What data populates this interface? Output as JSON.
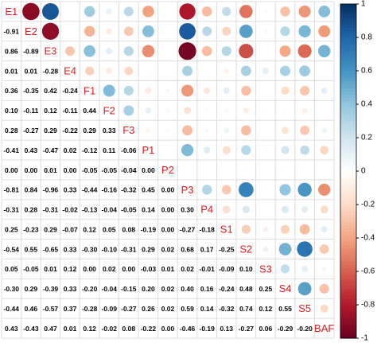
{
  "chart_data": {
    "type": "corrplot",
    "variables": [
      "E1",
      "E2",
      "E3",
      "E4",
      "F1",
      "F2",
      "F3",
      "P1",
      "P2",
      "P3",
      "P4",
      "S1",
      "S2",
      "S3",
      "S4",
      "S5",
      "BAF"
    ],
    "values": [
      [],
      [
        -0.91
      ],
      [
        0.86,
        -0.89
      ],
      [
        0.01,
        0.01,
        -0.28
      ],
      [
        0.36,
        -0.35,
        0.42,
        -0.24
      ],
      [
        0.1,
        -0.11,
        0.12,
        -0.11,
        0.44
      ],
      [
        0.28,
        -0.27,
        0.29,
        -0.22,
        0.29,
        0.33
      ],
      [
        -0.41,
        0.43,
        -0.47,
        0.02,
        -0.12,
        0.11,
        -0.06
      ],
      [
        0.0,
        0.0,
        0.01,
        0.0,
        -0.05,
        -0.05,
        -0.04,
        0.0
      ],
      [
        -0.81,
        0.84,
        -0.96,
        0.33,
        -0.44,
        -0.16,
        -0.32,
        0.45,
        0.0
      ],
      [
        -0.31,
        0.28,
        -0.31,
        -0.02,
        -0.13,
        -0.04,
        -0.05,
        0.14,
        0.0,
        0.3
      ],
      [
        0.25,
        -0.23,
        0.29,
        -0.07,
        0.12,
        0.05,
        0.08,
        -0.19,
        0.0,
        -0.27,
        -0.18
      ],
      [
        -0.54,
        0.55,
        -0.65,
        0.33,
        -0.3,
        -0.1,
        -0.31,
        0.29,
        0.02,
        0.68,
        0.17,
        -0.25
      ],
      [
        0.05,
        -0.05,
        0.01,
        0.12,
        0.0,
        0.02,
        0.0,
        -0.03,
        0.01,
        0.02,
        -0.01,
        -0.09,
        0.1
      ],
      [
        -0.3,
        0.29,
        -0.39,
        0.33,
        -0.2,
        -0.04,
        -0.15,
        0.2,
        0.02,
        0.4,
        0.16,
        -0.24,
        0.48,
        0.25
      ],
      [
        -0.44,
        0.46,
        -0.57,
        0.37,
        -0.28,
        -0.09,
        -0.27,
        0.26,
        0.02,
        0.59,
        0.14,
        -0.32,
        0.74,
        0.12,
        0.55
      ],
      [
        0.43,
        -0.43,
        0.47,
        0.01,
        0.12,
        -0.02,
        0.08,
        -0.22,
        0.0,
        -0.46,
        -0.19,
        0.13,
        -0.27,
        0.06,
        -0.29,
        -0.2
      ]
    ],
    "value_labels": [
      [],
      [
        "-0.91"
      ],
      [
        "0.86",
        "-0.89"
      ],
      [
        "0.01",
        "0.01",
        "-0.28"
      ],
      [
        "0.36",
        "-0.35",
        "0.42",
        "-0.24"
      ],
      [
        "0.10",
        "-0.11",
        "0.12",
        "-0.11",
        "0.44"
      ],
      [
        "0.28",
        "-0.27",
        "0.29",
        "-0.22",
        "0.29",
        "0.33"
      ],
      [
        "-0.41",
        "0.43",
        "-0.47",
        "0.02",
        "-0.12",
        "0.11",
        "-0.06"
      ],
      [
        "0.00",
        "0.00",
        "0.01",
        "0.00",
        "-0.05",
        "-0.05",
        "-0.04",
        "0.00"
      ],
      [
        "-0.81",
        "0.84",
        "-0.96",
        "0.33",
        "-0.44",
        "-0.16",
        "-0.32",
        "0.45",
        "0.00"
      ],
      [
        "-0.31",
        "0.28",
        "-0.31",
        "-0.02",
        "-0.13",
        "-0.04",
        "-0.05",
        "0.14",
        "0.00",
        "0.30"
      ],
      [
        "0.25",
        "-0.23",
        "0.29",
        "-0.07",
        "0.12",
        "0.05",
        "0.08",
        "-0.19",
        "0.00",
        "-0.27",
        "-0.18"
      ],
      [
        "-0.54",
        "0.55",
        "-0.65",
        "0.33",
        "-0.30",
        "-0.10",
        "-0.31",
        "0.29",
        "0.02",
        "0.68",
        "0.17",
        "-0.25"
      ],
      [
        "0.05",
        "-0.05",
        "0.01",
        "0.12",
        "0.00",
        "0.02",
        "0.00",
        "-0.03",
        "0.01",
        "0.02",
        "-0.01",
        "-0.09",
        "0.10"
      ],
      [
        "-0.30",
        "0.29",
        "-0.39",
        "0.33",
        "-0.20",
        "-0.04",
        "-0.15",
        "0.20",
        "0.02",
        "0.40",
        "0.16",
        "-0.24",
        "0.48",
        "0.25"
      ],
      [
        "-0.44",
        "0.46",
        "-0.57",
        "0.37",
        "-0.28",
        "-0.09",
        "-0.27",
        "0.26",
        "0.02",
        "0.59",
        "0.14",
        "-0.32",
        "0.74",
        "0.12",
        "0.55"
      ],
      [
        "0.43",
        "-0.43",
        "0.47",
        "0.01",
        "0.12",
        "-0.02",
        "0.08",
        "-0.22",
        "0.00",
        "-0.46",
        "-0.19",
        "0.13",
        "-0.27",
        "0.06",
        "-0.29",
        "-0.20"
      ]
    ],
    "colors": [
      "#67001F",
      "#B2182B",
      "#D6604D",
      "#F4A582",
      "#FDDBC7",
      "#FFFFFF",
      "#D1E5F0",
      "#92C5DE",
      "#4393C3",
      "#2166AC",
      "#053061"
    ],
    "ylim": [
      -1,
      1
    ],
    "yticks": [
      -1,
      -0.8,
      -0.6,
      -0.4,
      -0.2,
      0,
      0.2,
      0.4,
      0.6,
      0.8,
      1
    ]
  }
}
